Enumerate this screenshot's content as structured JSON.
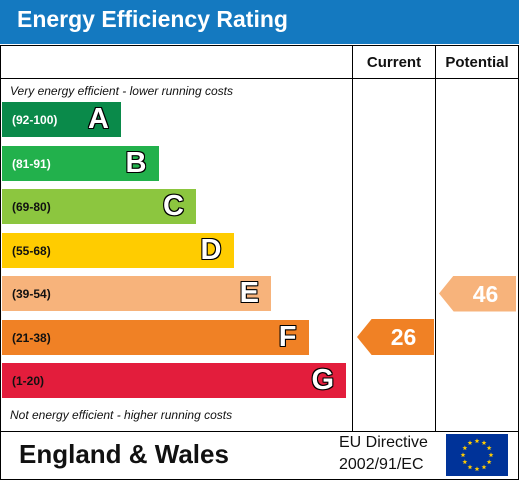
{
  "title": "Energy Efficiency Rating",
  "columns": {
    "current": "Current",
    "potential": "Potential"
  },
  "top_note": "Very energy efficient - lower running costs",
  "bottom_note": "Not energy efficient - higher running costs",
  "chart_data": {
    "type": "bar",
    "bands": [
      {
        "letter": "A",
        "range": "(92-100)",
        "color": "#0a8a4a",
        "range_color": "#ffffff"
      },
      {
        "letter": "B",
        "range": "(81-91)",
        "color": "#22b14c",
        "range_color": "#ffffff"
      },
      {
        "letter": "C",
        "range": "(69-80)",
        "color": "#8cc63f",
        "range_color": "#111111"
      },
      {
        "letter": "D",
        "range": "(55-68)",
        "color": "#ffcc00",
        "range_color": "#111111"
      },
      {
        "letter": "E",
        "range": "(39-54)",
        "color": "#f7b37b",
        "range_color": "#111111"
      },
      {
        "letter": "F",
        "range": "(21-38)",
        "color": "#f08125",
        "range_color": "#111111"
      },
      {
        "letter": "G",
        "range": "(1-20)",
        "color": "#e31d3c",
        "range_color": "#111111"
      }
    ],
    "ratings": [
      {
        "label": "Current",
        "value": 26,
        "band": "F",
        "color": "#f08125"
      },
      {
        "label": "Potential",
        "value": 46,
        "band": "E",
        "color": "#f7b37b"
      }
    ]
  },
  "footer": {
    "country": "England & Wales",
    "directive_line1": "EU Directive",
    "directive_line2": "2002/91/EC"
  },
  "colors": {
    "title_bar": "#1479c0",
    "eu_flag_blue": "#003399",
    "eu_flag_stars": "#ffcc00"
  },
  "icons": {
    "flag": "eu-flag-icon"
  }
}
